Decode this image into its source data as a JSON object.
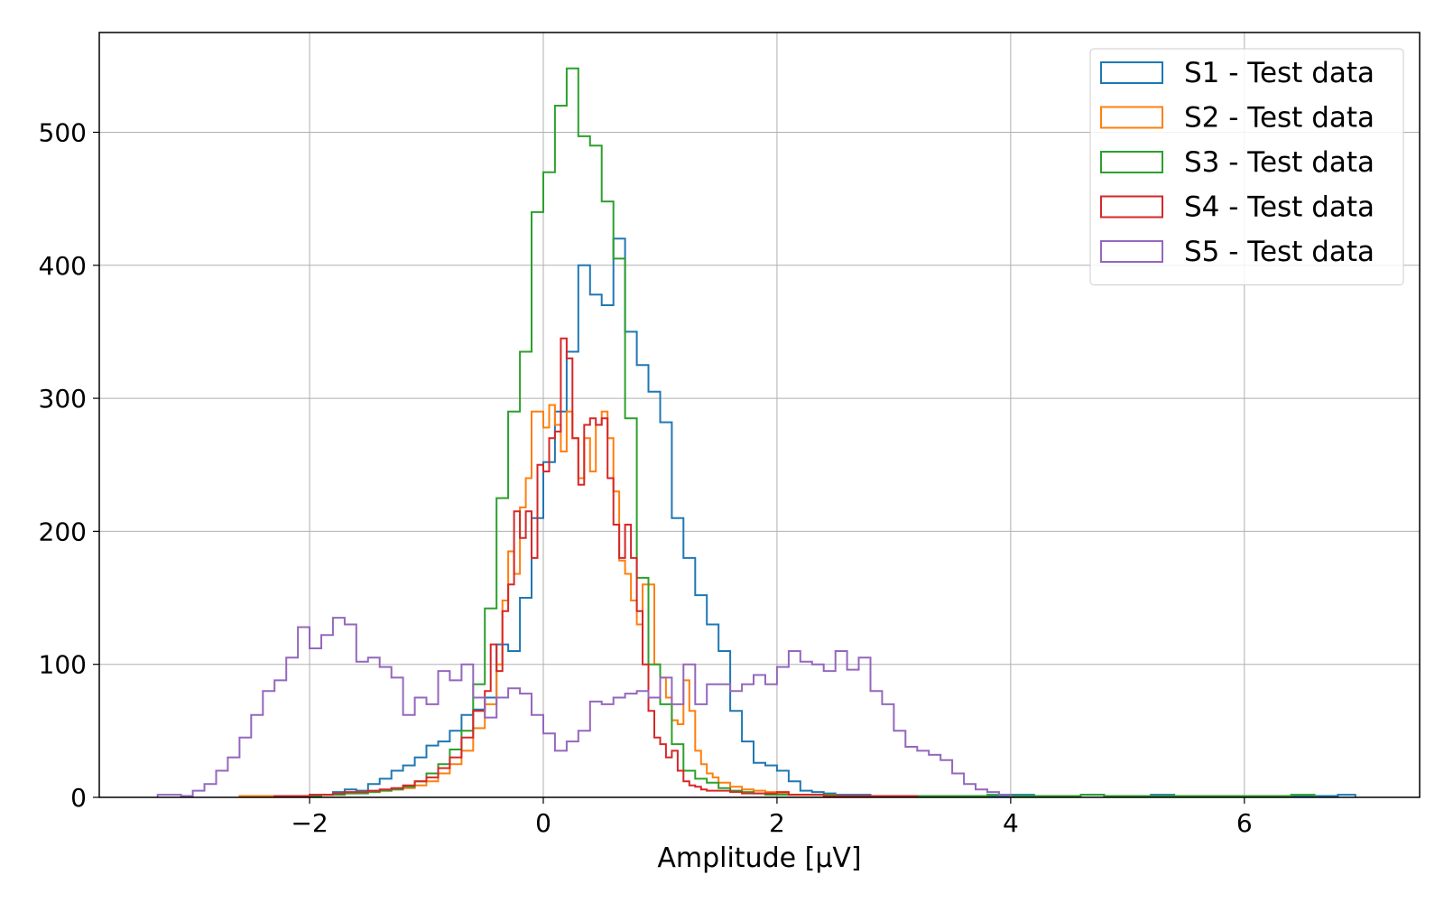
{
  "chart_data": {
    "type": "histogram",
    "title": "",
    "xlabel": "Amplitude [μV]",
    "ylabel": "",
    "xlim": [
      -3.8,
      7.5
    ],
    "ylim": [
      0,
      575
    ],
    "xticks": [
      -2,
      0,
      2,
      4,
      6
    ],
    "xtick_labels": [
      "−2",
      "0",
      "2",
      "4",
      "6"
    ],
    "yticks": [
      0,
      100,
      200,
      300,
      400,
      500
    ],
    "ytick_labels": [
      "0",
      "100",
      "200",
      "300",
      "400",
      "500"
    ],
    "grid": true,
    "legend_position": "top-right",
    "series": [
      {
        "name": "S1 - Test data",
        "color": "#1f77b4",
        "bin_edges": [
          -2.4,
          -2.3,
          -2.2,
          -2.1,
          -2.0,
          -1.9,
          -1.8,
          -1.7,
          -1.6,
          -1.5,
          -1.4,
          -1.3,
          -1.2,
          -1.1,
          -1.0,
          -0.9,
          -0.8,
          -0.7,
          -0.6,
          -0.5,
          -0.4,
          -0.3,
          -0.2,
          -0.1,
          0.0,
          0.1,
          0.2,
          0.3,
          0.4,
          0.5,
          0.6,
          0.7,
          0.8,
          0.9,
          1.0,
          1.1,
          1.2,
          1.3,
          1.4,
          1.5,
          1.6,
          1.7,
          1.8,
          1.9,
          2.0,
          2.1,
          2.2,
          2.3,
          2.4,
          2.5,
          2.6,
          2.7,
          2.8,
          2.9,
          3.0,
          3.2,
          3.4,
          3.6,
          3.8,
          4.0,
          4.2,
          4.4,
          4.6,
          4.8,
          5.0,
          5.2,
          5.4,
          5.6,
          5.8,
          6.0,
          6.2,
          6.4,
          6.6,
          6.8,
          6.95
        ],
        "counts": [
          1,
          1,
          1,
          1,
          2,
          2,
          4,
          6,
          5,
          10,
          14,
          20,
          24,
          30,
          39,
          42,
          50,
          62,
          66,
          75,
          115,
          110,
          150,
          210,
          252,
          290,
          335,
          400,
          378,
          370,
          420,
          350,
          325,
          305,
          282,
          210,
          180,
          152,
          130,
          110,
          65,
          42,
          26,
          24,
          20,
          12,
          5,
          4,
          3,
          2,
          2,
          2,
          1,
          1,
          1,
          1,
          1,
          1,
          1,
          2,
          1,
          1,
          2,
          1,
          1,
          2,
          1,
          1,
          1,
          1,
          1,
          1,
          1,
          2
        ]
      },
      {
        "name": "S2 - Test data",
        "color": "#ff7f0e",
        "bin_edges": [
          -2.6,
          -2.5,
          -2.4,
          -2.3,
          -2.2,
          -2.1,
          -2.0,
          -1.9,
          -1.8,
          -1.7,
          -1.6,
          -1.5,
          -1.4,
          -1.3,
          -1.2,
          -1.1,
          -1.0,
          -0.9,
          -0.8,
          -0.7,
          -0.6,
          -0.5,
          -0.4,
          -0.35,
          -0.3,
          -0.25,
          -0.2,
          -0.15,
          -0.1,
          -0.05,
          0.0,
          0.05,
          0.1,
          0.15,
          0.2,
          0.25,
          0.3,
          0.35,
          0.4,
          0.45,
          0.5,
          0.55,
          0.6,
          0.65,
          0.7,
          0.75,
          0.8,
          0.85,
          0.9,
          0.95,
          1.0,
          1.05,
          1.1,
          1.15,
          1.2,
          1.25,
          1.3,
          1.35,
          1.4,
          1.45,
          1.5,
          1.6,
          1.7,
          1.8,
          1.9,
          2.0,
          2.1,
          2.2,
          2.3,
          2.4,
          2.5,
          2.6,
          2.8,
          3.0
        ],
        "counts": [
          1,
          1,
          1,
          1,
          1,
          1,
          1,
          2,
          2,
          3,
          4,
          4,
          5,
          6,
          7,
          9,
          12,
          18,
          25,
          35,
          52,
          70,
          100,
          148,
          185,
          168,
          218,
          240,
          290,
          290,
          278,
          295,
          280,
          260,
          290,
          270,
          240,
          270,
          245,
          280,
          290,
          270,
          230,
          178,
          168,
          148,
          130,
          160,
          160,
          100,
          90,
          75,
          58,
          55,
          88,
          65,
          35,
          25,
          18,
          15,
          11,
          8,
          6,
          5,
          4,
          3,
          2,
          2,
          2,
          2,
          1,
          1,
          1
        ]
      },
      {
        "name": "S3 - Test data",
        "color": "#2ca02c",
        "bin_edges": [
          -2.3,
          -2.1,
          -1.9,
          -1.7,
          -1.5,
          -1.4,
          -1.3,
          -1.2,
          -1.1,
          -1.0,
          -0.9,
          -0.8,
          -0.7,
          -0.6,
          -0.5,
          -0.4,
          -0.3,
          -0.2,
          -0.1,
          0.0,
          0.1,
          0.2,
          0.3,
          0.4,
          0.5,
          0.6,
          0.7,
          0.8,
          0.9,
          1.0,
          1.1,
          1.2,
          1.3,
          1.4,
          1.5,
          1.6,
          1.7,
          1.8,
          1.9,
          2.0,
          2.1,
          2.2,
          2.3,
          2.4,
          2.5,
          2.6,
          2.8,
          3.0,
          3.2,
          3.4,
          3.6,
          3.8,
          4.0,
          4.2,
          4.4,
          4.6,
          4.8,
          5.0,
          5.2,
          5.4,
          5.6,
          5.8,
          6.0,
          6.2,
          6.4,
          6.6
        ],
        "counts": [
          1,
          1,
          2,
          3,
          4,
          5,
          6,
          8,
          12,
          18,
          25,
          36,
          50,
          85,
          142,
          225,
          290,
          335,
          440,
          470,
          520,
          548,
          497,
          490,
          448,
          405,
          285,
          165,
          100,
          70,
          40,
          20,
          14,
          11,
          7,
          5,
          4,
          3,
          2,
          2,
          2,
          2,
          2,
          2,
          1,
          1,
          1,
          1,
          1,
          1,
          1,
          2,
          1,
          1,
          1,
          2,
          1,
          1,
          1,
          1,
          1,
          1,
          1,
          1,
          2
        ]
      },
      {
        "name": "S4 - Test data",
        "color": "#d62728",
        "bin_edges": [
          -2.3,
          -2.1,
          -2.0,
          -1.9,
          -1.8,
          -1.7,
          -1.6,
          -1.5,
          -1.4,
          -1.3,
          -1.2,
          -1.1,
          -1.0,
          -0.9,
          -0.8,
          -0.7,
          -0.6,
          -0.5,
          -0.45,
          -0.4,
          -0.35,
          -0.3,
          -0.25,
          -0.2,
          -0.15,
          -0.1,
          -0.05,
          0.0,
          0.05,
          0.1,
          0.15,
          0.2,
          0.25,
          0.3,
          0.35,
          0.4,
          0.45,
          0.5,
          0.55,
          0.6,
          0.65,
          0.7,
          0.75,
          0.8,
          0.85,
          0.9,
          0.95,
          1.0,
          1.05,
          1.1,
          1.15,
          1.2,
          1.25,
          1.3,
          1.35,
          1.4,
          1.5,
          1.6,
          1.7,
          1.8,
          1.9,
          2.0,
          2.1,
          2.2,
          2.3,
          2.4,
          2.6,
          2.8,
          3.0,
          3.2
        ],
        "counts": [
          1,
          1,
          2,
          2,
          3,
          4,
          4,
          5,
          6,
          7,
          9,
          12,
          15,
          22,
          30,
          45,
          65,
          80,
          115,
          95,
          140,
          160,
          215,
          195,
          215,
          180,
          250,
          245,
          270,
          275,
          345,
          330,
          270,
          235,
          280,
          285,
          280,
          285,
          240,
          205,
          180,
          205,
          180,
          140,
          100,
          65,
          45,
          40,
          30,
          35,
          20,
          12,
          9,
          8,
          6,
          5,
          5,
          4,
          3,
          3,
          3,
          4,
          2,
          2,
          2,
          1,
          1,
          1,
          1
        ]
      },
      {
        "name": "S5 - Test data",
        "color": "#9467bd",
        "bin_edges": [
          -3.3,
          -3.2,
          -3.1,
          -3.0,
          -2.9,
          -2.8,
          -2.7,
          -2.6,
          -2.5,
          -2.4,
          -2.3,
          -2.2,
          -2.1,
          -2.0,
          -1.9,
          -1.8,
          -1.7,
          -1.6,
          -1.5,
          -1.4,
          -1.3,
          -1.2,
          -1.1,
          -1.0,
          -0.9,
          -0.8,
          -0.7,
          -0.6,
          -0.5,
          -0.4,
          -0.3,
          -0.2,
          -0.1,
          0.0,
          0.1,
          0.2,
          0.3,
          0.4,
          0.5,
          0.6,
          0.7,
          0.8,
          0.9,
          1.0,
          1.1,
          1.2,
          1.3,
          1.4,
          1.5,
          1.6,
          1.7,
          1.8,
          1.9,
          2.0,
          2.1,
          2.2,
          2.3,
          2.4,
          2.5,
          2.6,
          2.7,
          2.8,
          2.9,
          3.0,
          3.1,
          3.2,
          3.3,
          3.4,
          3.5,
          3.6,
          3.7,
          3.8,
          3.9,
          4.0
        ],
        "counts": [
          2,
          2,
          1,
          5,
          10,
          20,
          30,
          45,
          62,
          80,
          88,
          105,
          128,
          112,
          122,
          135,
          130,
          102,
          105,
          98,
          90,
          62,
          75,
          70,
          95,
          88,
          100,
          75,
          60,
          75,
          82,
          78,
          62,
          48,
          35,
          42,
          50,
          72,
          70,
          75,
          78,
          80,
          75,
          90,
          70,
          100,
          70,
          85,
          85,
          80,
          85,
          92,
          85,
          98,
          110,
          102,
          100,
          95,
          110,
          96,
          105,
          80,
          70,
          50,
          38,
          35,
          32,
          28,
          18,
          10,
          6,
          4,
          2
        ]
      }
    ]
  }
}
